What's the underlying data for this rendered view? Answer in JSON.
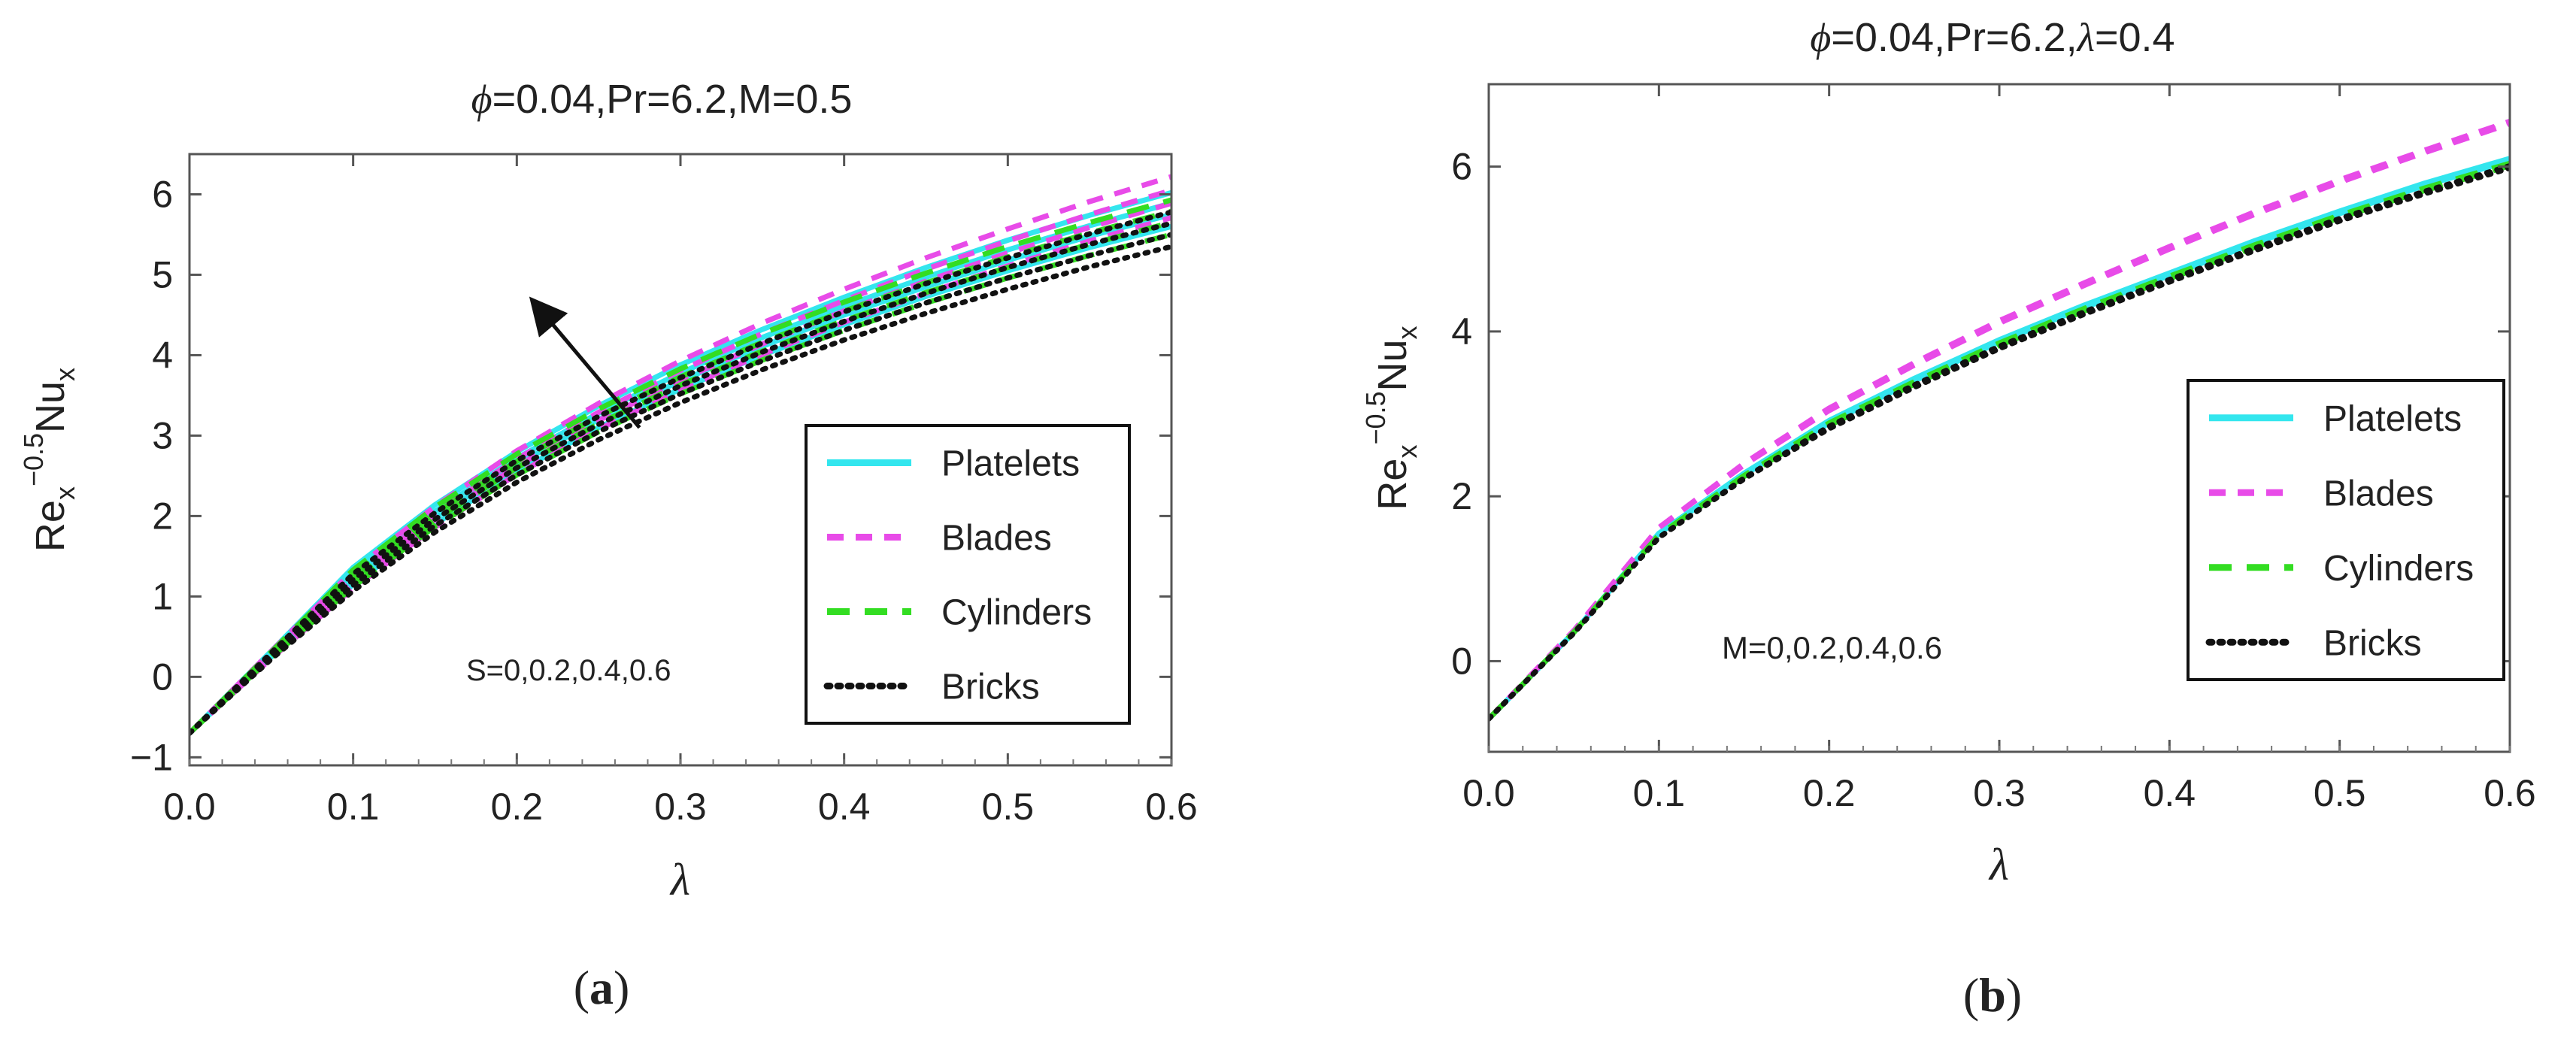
{
  "chart_data": [
    {
      "type": "line",
      "panel_label": "(a)",
      "title": "ϕ=0.04,Pr=6.2,M=0.5",
      "title_parts": {
        "symbol": "ϕ",
        "rest": "=0.04,Pr=6.2,M=0.5"
      },
      "xlabel": "λ",
      "ylabel": {
        "base": "Re",
        "sub": "x",
        "sup": "−0.5",
        "base2": "Nu",
        "sub2": "x"
      },
      "xlim": [
        0,
        0.6
      ],
      "ylim": [
        -1.1,
        6.5
      ],
      "xticks": [
        0,
        0.1,
        0.2,
        0.3,
        0.4,
        0.5,
        0.6
      ],
      "xtick_labels": [
        "0.0",
        "0.1",
        "0.2",
        "0.3",
        "0.4",
        "0.5",
        "0.6"
      ],
      "yticks": [
        -1,
        0,
        1,
        2,
        3,
        4,
        5,
        6
      ],
      "ytick_labels": [
        "−1",
        "0",
        "1",
        "2",
        "3",
        "4",
        "5",
        "6"
      ],
      "grid": false,
      "legend_position": "middle-right",
      "legend": [
        {
          "label": "Platelets",
          "color": "#33e6ee",
          "style": "solid"
        },
        {
          "label": "Blades",
          "color": "#e84be8",
          "style": "dashed"
        },
        {
          "label": "Cylinders",
          "color": "#33dd22",
          "style": "longdash"
        },
        {
          "label": "Bricks",
          "color": "#111111",
          "style": "dotted"
        }
      ],
      "annotation": "S=0,0.2,0.4,0.6",
      "arrow": {
        "from": [
          0.275,
          3.1
        ],
        "to": [
          0.215,
          4.55
        ],
        "meaning": "increasing S"
      },
      "parameter_values": [
        0,
        0.2,
        0.4,
        0.6
      ],
      "x": [
        0,
        0.05,
        0.1,
        0.15,
        0.2,
        0.25,
        0.3,
        0.35,
        0.4,
        0.45,
        0.5,
        0.55,
        0.6
      ],
      "series": [
        {
          "name": "Platelets",
          "param": 0,
          "values": [
            -0.7,
            0.25,
            1.15,
            1.9,
            2.55,
            3.1,
            3.58,
            4.0,
            4.38,
            4.73,
            5.05,
            5.34,
            5.6
          ]
        },
        {
          "name": "Platelets",
          "param": 0.2,
          "values": [
            -0.7,
            0.28,
            1.22,
            1.98,
            2.64,
            3.2,
            3.68,
            4.11,
            4.5,
            4.85,
            5.18,
            5.48,
            5.75
          ]
        },
        {
          "name": "Platelets",
          "param": 0.4,
          "values": [
            -0.7,
            0.3,
            1.29,
            2.06,
            2.72,
            3.28,
            3.78,
            4.22,
            4.61,
            4.97,
            5.31,
            5.61,
            5.89
          ]
        },
        {
          "name": "Platelets",
          "param": 0.6,
          "values": [
            -0.7,
            0.32,
            1.36,
            2.14,
            2.8,
            3.37,
            3.88,
            4.32,
            4.72,
            5.09,
            5.43,
            5.74,
            6.02
          ]
        },
        {
          "name": "Blades",
          "param": 0,
          "values": [
            -0.7,
            0.23,
            1.1,
            1.86,
            2.52,
            3.08,
            3.57,
            4.01,
            4.41,
            4.77,
            5.11,
            5.42,
            5.71
          ]
        },
        {
          "name": "Blades",
          "param": 0.2,
          "values": [
            -0.7,
            0.26,
            1.17,
            1.95,
            2.62,
            3.19,
            3.69,
            4.14,
            4.55,
            4.92,
            5.27,
            5.59,
            5.89
          ]
        },
        {
          "name": "Blades",
          "param": 0.4,
          "values": [
            -0.7,
            0.29,
            1.24,
            2.03,
            2.71,
            3.29,
            3.81,
            4.27,
            4.68,
            5.07,
            5.42,
            5.75,
            6.05
          ]
        },
        {
          "name": "Blades",
          "param": 0.6,
          "values": [
            -0.7,
            0.32,
            1.32,
            2.12,
            2.81,
            3.4,
            3.93,
            4.4,
            4.82,
            5.21,
            5.57,
            5.91,
            6.22
          ]
        },
        {
          "name": "Cylinders",
          "param": 0,
          "values": [
            -0.7,
            0.24,
            1.12,
            1.87,
            2.51,
            3.05,
            3.52,
            3.94,
            4.31,
            4.65,
            4.96,
            5.24,
            5.5
          ]
        },
        {
          "name": "Cylinders",
          "param": 0.2,
          "values": [
            -0.7,
            0.27,
            1.19,
            1.95,
            2.6,
            3.15,
            3.63,
            4.05,
            4.43,
            4.78,
            5.09,
            5.38,
            5.65
          ]
        },
        {
          "name": "Cylinders",
          "param": 0.4,
          "values": [
            -0.7,
            0.29,
            1.26,
            2.03,
            2.68,
            3.24,
            3.73,
            4.16,
            4.55,
            4.9,
            5.22,
            5.52,
            5.79
          ]
        },
        {
          "name": "Cylinders",
          "param": 0.6,
          "values": [
            -0.7,
            0.31,
            1.33,
            2.11,
            2.77,
            3.33,
            3.83,
            4.27,
            4.66,
            5.02,
            5.35,
            5.65,
            5.93
          ]
        },
        {
          "name": "Bricks",
          "param": 0,
          "values": [
            -0.7,
            0.22,
            1.07,
            1.8,
            2.42,
            2.95,
            3.41,
            3.82,
            4.19,
            4.52,
            4.82,
            5.1,
            5.35
          ]
        },
        {
          "name": "Bricks",
          "param": 0.2,
          "values": [
            -0.7,
            0.25,
            1.14,
            1.88,
            2.51,
            3.05,
            3.52,
            3.93,
            4.31,
            4.65,
            4.96,
            5.24,
            5.5
          ]
        },
        {
          "name": "Bricks",
          "param": 0.4,
          "values": [
            -0.7,
            0.27,
            1.21,
            1.96,
            2.6,
            3.14,
            3.62,
            4.04,
            4.42,
            4.77,
            5.09,
            5.38,
            5.64
          ]
        },
        {
          "name": "Bricks",
          "param": 0.6,
          "values": [
            -0.7,
            0.3,
            1.28,
            2.04,
            2.69,
            3.24,
            3.72,
            4.15,
            4.54,
            4.89,
            5.21,
            5.51,
            5.78
          ]
        }
      ]
    },
    {
      "type": "line",
      "panel_label": "(b)",
      "title": "ϕ=0.04,Pr=6.2,λ=0.4",
      "title_parts": {
        "symbol": "ϕ",
        "rest": "=0.04,Pr=6.2,",
        "symbol2": "λ",
        "rest2": "=0.4"
      },
      "xlabel": "λ",
      "ylabel": {
        "base": "Re",
        "sub": "x",
        "sup": "−0.5",
        "base2": "Nu",
        "sub2": "x"
      },
      "xlim": [
        0,
        0.6
      ],
      "ylim": [
        -1.1,
        7.0
      ],
      "xticks": [
        0,
        0.1,
        0.2,
        0.3,
        0.4,
        0.5,
        0.6
      ],
      "xtick_labels": [
        "0.0",
        "0.1",
        "0.2",
        "0.3",
        "0.4",
        "0.5",
        "0.6"
      ],
      "yticks": [
        0,
        2,
        4,
        6
      ],
      "ytick_labels": [
        "0",
        "2",
        "4",
        "6"
      ],
      "grid": false,
      "legend_position": "middle-right",
      "legend": [
        {
          "label": "Platelets",
          "color": "#33e6ee",
          "style": "solid"
        },
        {
          "label": "Blades",
          "color": "#e84be8",
          "style": "dashed"
        },
        {
          "label": "Cylinders",
          "color": "#33dd22",
          "style": "longdash"
        },
        {
          "label": "Bricks",
          "color": "#111111",
          "style": "dotted"
        }
      ],
      "annotation": "M=0,0.2,0.4,0.6",
      "parameter_values": [
        0,
        0.2,
        0.4,
        0.6
      ],
      "x": [
        0,
        0.05,
        0.1,
        0.15,
        0.2,
        0.25,
        0.3,
        0.35,
        0.4,
        0.45,
        0.5,
        0.55,
        0.6
      ],
      "series": [
        {
          "name": "Platelets",
          "param": 0,
          "values": [
            -0.7,
            0.35,
            1.55,
            2.28,
            2.92,
            3.43,
            3.9,
            4.32,
            4.71,
            5.1,
            5.46,
            5.8,
            6.1
          ]
        },
        {
          "name": "Platelets",
          "param": 0.2,
          "values": [
            -0.7,
            0.35,
            1.55,
            2.27,
            2.91,
            3.42,
            3.89,
            4.31,
            4.7,
            5.09,
            5.45,
            5.79,
            6.09
          ]
        },
        {
          "name": "Platelets",
          "param": 0.4,
          "values": [
            -0.7,
            0.35,
            1.55,
            2.27,
            2.9,
            3.41,
            3.88,
            4.3,
            4.69,
            5.08,
            5.44,
            5.78,
            6.08
          ]
        },
        {
          "name": "Platelets",
          "param": 0.6,
          "values": [
            -0.7,
            0.35,
            1.55,
            2.26,
            2.89,
            3.4,
            3.87,
            4.29,
            4.68,
            5.07,
            5.43,
            5.77,
            6.07
          ]
        },
        {
          "name": "Blades",
          "param": 0,
          "values": [
            -0.7,
            0.37,
            1.62,
            2.4,
            3.07,
            3.62,
            4.13,
            4.59,
            5.03,
            5.45,
            5.84,
            6.2,
            6.55
          ]
        },
        {
          "name": "Blades",
          "param": 0.2,
          "values": [
            -0.7,
            0.37,
            1.62,
            2.39,
            3.06,
            3.61,
            4.12,
            4.58,
            5.02,
            5.44,
            5.83,
            6.19,
            6.54
          ]
        },
        {
          "name": "Blades",
          "param": 0.4,
          "values": [
            -0.7,
            0.37,
            1.62,
            2.39,
            3.05,
            3.6,
            4.11,
            4.57,
            5.01,
            5.43,
            5.82,
            6.18,
            6.53
          ]
        },
        {
          "name": "Blades",
          "param": 0.6,
          "values": [
            -0.7,
            0.37,
            1.62,
            2.38,
            3.04,
            3.59,
            4.1,
            4.56,
            5.0,
            5.42,
            5.81,
            6.17,
            6.52
          ]
        },
        {
          "name": "Cylinders",
          "param": 0,
          "values": [
            -0.7,
            0.35,
            1.53,
            2.25,
            2.89,
            3.39,
            3.86,
            4.28,
            4.67,
            5.05,
            5.41,
            5.74,
            6.04
          ]
        },
        {
          "name": "Cylinders",
          "param": 0.2,
          "values": [
            -0.7,
            0.35,
            1.53,
            2.25,
            2.88,
            3.38,
            3.85,
            4.27,
            4.66,
            5.04,
            5.4,
            5.73,
            6.03
          ]
        },
        {
          "name": "Cylinders",
          "param": 0.4,
          "values": [
            -0.7,
            0.35,
            1.53,
            2.24,
            2.87,
            3.37,
            3.84,
            4.26,
            4.65,
            5.03,
            5.39,
            5.72,
            6.02
          ]
        },
        {
          "name": "Cylinders",
          "param": 0.6,
          "values": [
            -0.7,
            0.35,
            1.53,
            2.24,
            2.86,
            3.36,
            3.83,
            4.25,
            4.64,
            5.02,
            5.38,
            5.71,
            6.01
          ]
        },
        {
          "name": "Bricks",
          "param": 0,
          "values": [
            -0.7,
            0.34,
            1.5,
            2.22,
            2.85,
            3.35,
            3.82,
            4.24,
            4.63,
            5.01,
            5.37,
            5.7,
            6.01
          ]
        },
        {
          "name": "Bricks",
          "param": 0.2,
          "values": [
            -0.7,
            0.34,
            1.5,
            2.22,
            2.84,
            3.34,
            3.81,
            4.23,
            4.62,
            5.0,
            5.36,
            5.69,
            6.0
          ]
        },
        {
          "name": "Bricks",
          "param": 0.4,
          "values": [
            -0.7,
            0.34,
            1.5,
            2.21,
            2.83,
            3.33,
            3.8,
            4.22,
            4.61,
            4.99,
            5.35,
            5.68,
            5.99
          ]
        },
        {
          "name": "Bricks",
          "param": 0.6,
          "values": [
            -0.7,
            0.34,
            1.5,
            2.21,
            2.82,
            3.32,
            3.79,
            4.21,
            4.6,
            4.98,
            5.34,
            5.67,
            5.98
          ]
        }
      ]
    }
  ]
}
